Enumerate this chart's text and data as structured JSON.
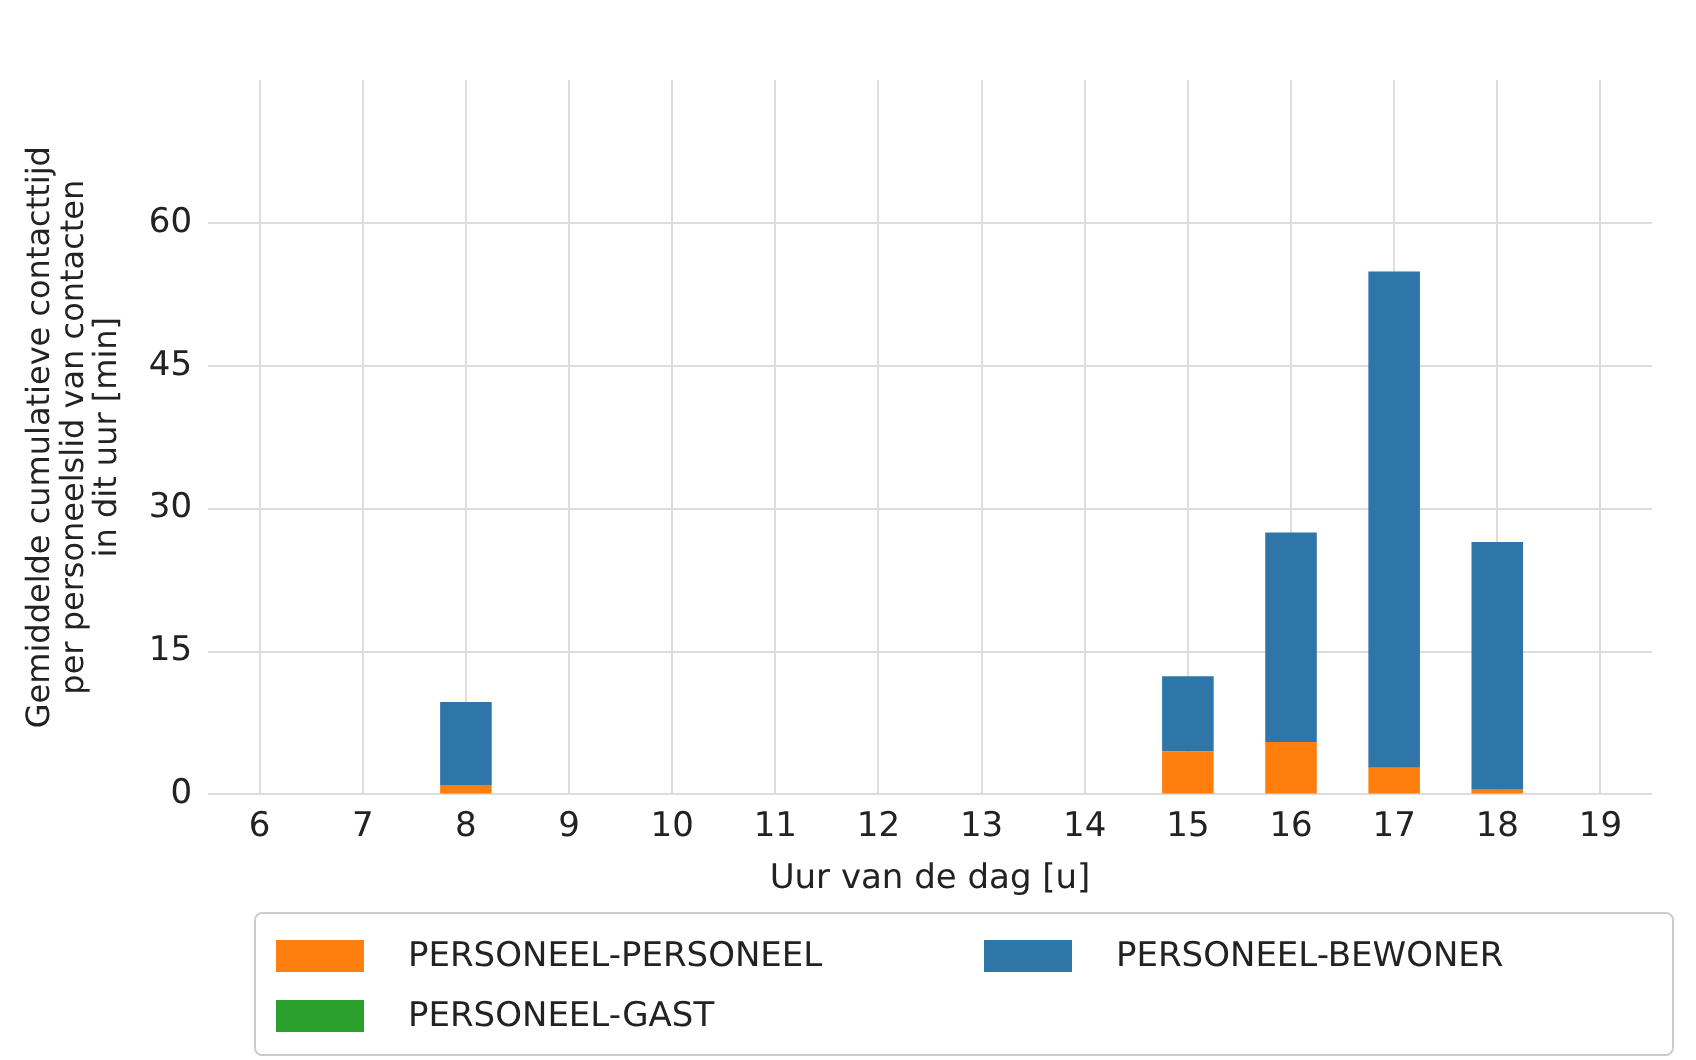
{
  "chart_data": {
    "type": "bar",
    "stacked": true,
    "xlabel": "Uur van de dag [u]",
    "ylabel": "Gemiddelde cumulatieve contacttijd\nper personeelslid van contacten\nin dit uur [min]",
    "categories": [
      "6",
      "7",
      "8",
      "9",
      "10",
      "11",
      "12",
      "13",
      "14",
      "15",
      "16",
      "17",
      "18",
      "19"
    ],
    "series": [
      {
        "name": "PERSONEEL-PERSONEEL",
        "color": "#ff7f0e",
        "values": [
          0,
          0,
          1,
          0,
          0,
          0,
          0,
          0,
          0,
          4.5,
          5.5,
          2.8,
          0.5,
          0
        ]
      },
      {
        "name": "PERSONEEL-BEWONER",
        "color": "#2e75a8",
        "values": [
          0,
          0,
          8.7,
          0,
          0,
          0,
          0,
          0,
          0,
          7.9,
          22,
          52.1,
          26,
          0
        ]
      },
      {
        "name": "PERSONEEL-GAST",
        "color": "#2ca02c",
        "values": [
          0,
          0,
          0,
          0,
          0,
          0,
          0,
          0,
          0,
          0,
          0,
          0,
          0,
          0
        ]
      }
    ],
    "ylim": [
      0,
      75
    ],
    "yticks": [
      0,
      15,
      30,
      45,
      60
    ],
    "grid": true,
    "legend": "bottom"
  }
}
